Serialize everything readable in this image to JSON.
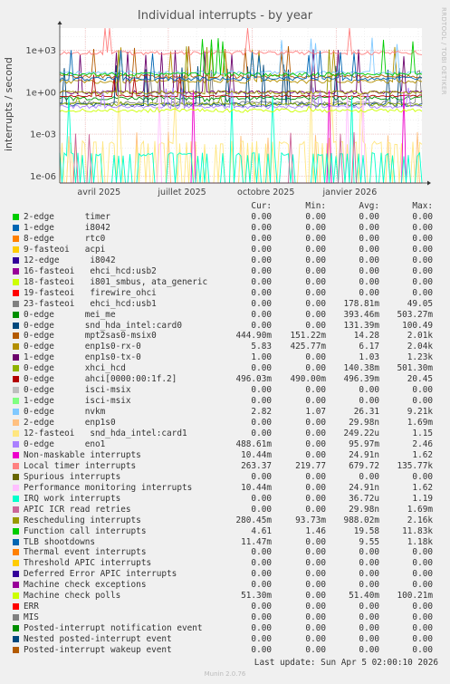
{
  "chart_data": {
    "type": "line",
    "title": "Individual interrupts - by year",
    "ylabel": "interrupts / second",
    "yscale": "log",
    "ytick_labels": [
      "1e+03",
      "1e+00",
      "1e-03",
      "1e-06"
    ],
    "ytick_exponents": [
      3,
      0,
      -3,
      -6
    ],
    "ylim_exponent": [
      -6.5,
      4.6
    ],
    "xtick_labels": [
      "avril 2025",
      "juillet 2025",
      "octobre 2025",
      "janvier 2026"
    ],
    "xtick_dates": [
      "2025-04-01",
      "2025-07-01",
      "2025-10-01",
      "2026-01-01"
    ],
    "xlim": [
      "2025-03-04",
      "2026-04-05"
    ],
    "grid": true,
    "side_text": "RRDTOOL / TOBI OETIKER",
    "columns": [
      "Cur:",
      "Min:",
      "Avg:",
      "Max:"
    ],
    "series": [
      {
        "name": "2-edge      timer",
        "color": "#00cc00",
        "cur": "0.00",
        "min": "0.00",
        "avg": "0.00",
        "max": "0.00"
      },
      {
        "name": "1-edge      i8042",
        "color": "#0066b3",
        "cur": "0.00",
        "min": "0.00",
        "avg": "0.00",
        "max": "0.00"
      },
      {
        "name": "8-edge      rtc0",
        "color": "#ff8000",
        "cur": "0.00",
        "min": "0.00",
        "avg": "0.00",
        "max": "0.00"
      },
      {
        "name": "9-fasteoi   acpi",
        "color": "#ffcc00",
        "cur": "0.00",
        "min": "0.00",
        "avg": "0.00",
        "max": "0.00"
      },
      {
        "name": "12-edge      i8042",
        "color": "#330099",
        "cur": "0.00",
        "min": "0.00",
        "avg": "0.00",
        "max": "0.00"
      },
      {
        "name": "16-fasteoi   ehci_hcd:usb2",
        "color": "#990099",
        "cur": "0.00",
        "min": "0.00",
        "avg": "0.00",
        "max": "0.00"
      },
      {
        "name": "18-fasteoi   i801_smbus, ata_generic",
        "color": "#ccff00",
        "cur": "0.00",
        "min": "0.00",
        "avg": "0.00",
        "max": "0.00"
      },
      {
        "name": "19-fasteoi   firewire_ohci",
        "color": "#ff0000",
        "cur": "0.00",
        "min": "0.00",
        "avg": "0.00",
        "max": "0.00"
      },
      {
        "name": "23-fasteoi   ehci_hcd:usb1",
        "color": "#808080",
        "cur": "0.00",
        "min": "0.00",
        "avg": "178.81m",
        "max": "49.05"
      },
      {
        "name": "0-edge      mei_me",
        "color": "#008f00",
        "cur": "0.00",
        "min": "0.00",
        "avg": "393.46m",
        "max": "503.27m"
      },
      {
        "name": "0-edge      snd_hda_intel:card0",
        "color": "#00487d",
        "cur": "0.00",
        "min": "0.00",
        "avg": "131.39m",
        "max": "100.49"
      },
      {
        "name": "0-edge      mpt2sas0-msix0",
        "color": "#b35a00",
        "cur": "444.90m",
        "min": "151.22m",
        "avg": "14.28",
        "max": "2.01k"
      },
      {
        "name": "0-edge      enp1s0-rx-0",
        "color": "#b38f00",
        "cur": "5.83",
        "min": "425.77m",
        "avg": "6.17",
        "max": "2.04k"
      },
      {
        "name": "1-edge      enp1s0-tx-0",
        "color": "#6b006b",
        "cur": "1.00",
        "min": "0.00",
        "avg": "1.03",
        "max": "1.23k"
      },
      {
        "name": "0-edge      xhci_hcd",
        "color": "#8fb300",
        "cur": "0.00",
        "min": "0.00",
        "avg": "140.38m",
        "max": "501.30m"
      },
      {
        "name": "0-edge      ahci[0000:00:1f.2]",
        "color": "#b30000",
        "cur": "496.03m",
        "min": "490.00m",
        "avg": "496.39m",
        "max": "20.45"
      },
      {
        "name": "0-edge      isci-msix",
        "color": "#bebebe",
        "cur": "0.00",
        "min": "0.00",
        "avg": "0.00",
        "max": "0.00"
      },
      {
        "name": "1-edge      isci-msix",
        "color": "#80ff80",
        "cur": "0.00",
        "min": "0.00",
        "avg": "0.00",
        "max": "0.00"
      },
      {
        "name": "0-edge      nvkm",
        "color": "#80c9ff",
        "cur": "2.82",
        "min": "1.07",
        "avg": "26.31",
        "max": "9.21k"
      },
      {
        "name": "2-edge      enp1s0",
        "color": "#ffc080",
        "cur": "0.00",
        "min": "0.00",
        "avg": "29.98n",
        "max": "1.69m"
      },
      {
        "name": "12-fasteoi   snd_hda_intel:card1",
        "color": "#ffe680",
        "cur": "0.00",
        "min": "0.00",
        "avg": "249.22u",
        "max": "1.15"
      },
      {
        "name": "0-edge      eno1",
        "color": "#aa80ff",
        "cur": "488.61m",
        "min": "0.00",
        "avg": "95.97m",
        "max": "2.46"
      },
      {
        "name": "Non-maskable interrupts",
        "color": "#ee00cc",
        "cur": "10.44m",
        "min": "0.00",
        "avg": "24.91n",
        "max": "1.62"
      },
      {
        "name": "Local timer interrupts",
        "color": "#ff8080",
        "cur": "263.37",
        "min": "219.77",
        "avg": "679.72",
        "max": "135.77k"
      },
      {
        "name": "Spurious interrupts",
        "color": "#666600",
        "cur": "0.00",
        "min": "0.00",
        "avg": "0.00",
        "max": "0.00"
      },
      {
        "name": "Performance monitoring interrupts",
        "color": "#ffbfff",
        "cur": "10.44m",
        "min": "0.00",
        "avg": "24.91n",
        "max": "1.62"
      },
      {
        "name": "IRQ work interrupts",
        "color": "#00ffcc",
        "cur": "0.00",
        "min": "0.00",
        "avg": "36.72u",
        "max": "1.19"
      },
      {
        "name": "APIC ICR read retries",
        "color": "#cc6699",
        "cur": "0.00",
        "min": "0.00",
        "avg": "29.98n",
        "max": "1.69m"
      },
      {
        "name": "Rescheduling interrupts",
        "color": "#999900",
        "cur": "280.45m",
        "min": "93.73m",
        "avg": "988.02m",
        "max": "2.16k"
      },
      {
        "name": "Function call interrupts",
        "color": "#00cc00",
        "cur": "4.61",
        "min": "1.46",
        "avg": "19.58",
        "max": "11.83k"
      },
      {
        "name": "TLB shootdowns",
        "color": "#0066b3",
        "cur": "11.47m",
        "min": "0.00",
        "avg": "9.55",
        "max": "1.18k"
      },
      {
        "name": "Thermal event interrupts",
        "color": "#ff8000",
        "cur": "0.00",
        "min": "0.00",
        "avg": "0.00",
        "max": "0.00"
      },
      {
        "name": "Threshold APIC interrupts",
        "color": "#ffcc00",
        "cur": "0.00",
        "min": "0.00",
        "avg": "0.00",
        "max": "0.00"
      },
      {
        "name": "Deferred Error APIC interrupts",
        "color": "#330099",
        "cur": "0.00",
        "min": "0.00",
        "avg": "0.00",
        "max": "0.00"
      },
      {
        "name": "Machine check exceptions",
        "color": "#990099",
        "cur": "0.00",
        "min": "0.00",
        "avg": "0.00",
        "max": "0.00"
      },
      {
        "name": "Machine check polls",
        "color": "#ccff00",
        "cur": "51.30m",
        "min": "0.00",
        "avg": "51.40m",
        "max": "100.21m"
      },
      {
        "name": "ERR",
        "color": "#ff0000",
        "cur": "0.00",
        "min": "0.00",
        "avg": "0.00",
        "max": "0.00"
      },
      {
        "name": "MIS",
        "color": "#808080",
        "cur": "0.00",
        "min": "0.00",
        "avg": "0.00",
        "max": "0.00"
      },
      {
        "name": "Posted-interrupt notification event",
        "color": "#008f00",
        "cur": "0.00",
        "min": "0.00",
        "avg": "0.00",
        "max": "0.00"
      },
      {
        "name": "Nested posted-interrupt event",
        "color": "#00487d",
        "cur": "0.00",
        "min": "0.00",
        "avg": "0.00",
        "max": "0.00"
      },
      {
        "name": "Posted-interrupt wakeup event",
        "color": "#b35a00",
        "cur": "0.00",
        "min": "0.00",
        "avg": "0.00",
        "max": "0.00"
      }
    ]
  },
  "last_update": "Last update: Sun Apr  5 02:00:10 2026",
  "footer": "Munin 2.0.76"
}
